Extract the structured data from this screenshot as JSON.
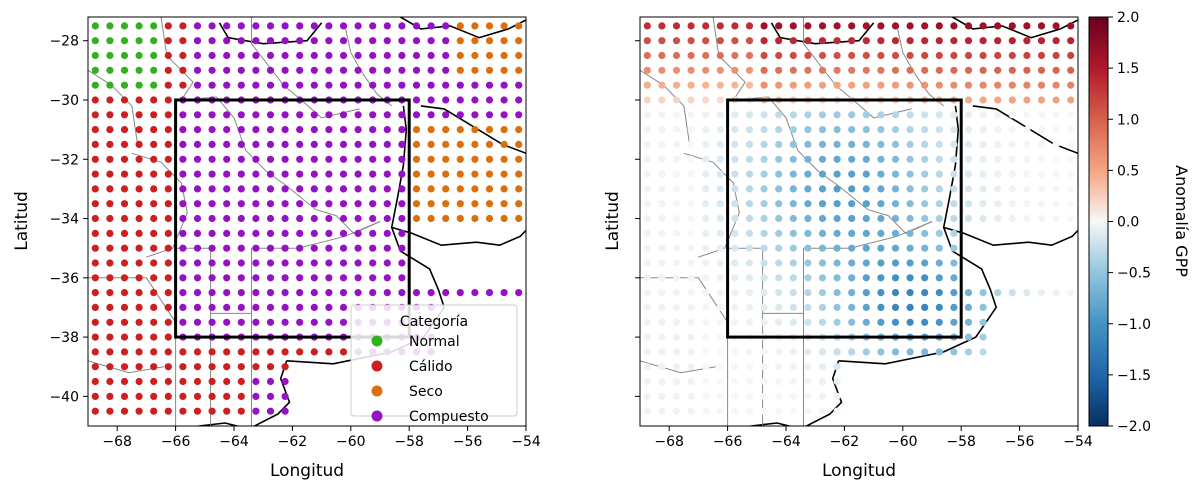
{
  "chart_data": [
    {
      "type": "scatter",
      "xlabel": "Longitud",
      "ylabel": "Latitud",
      "xlim": [
        -69,
        -54
      ],
      "ylim": [
        -41,
        -27.2
      ],
      "xticks": [
        -68,
        -66,
        -64,
        -62,
        -60,
        -58,
        -56,
        -54
      ],
      "yticks": [
        -28,
        -30,
        -32,
        -34,
        -36,
        -38,
        -40
      ],
      "grid_spacing_deg": 0.5,
      "box": {
        "lon": [
          -66,
          -58
        ],
        "lat": [
          -38,
          -30
        ]
      },
      "legend": {
        "title": "Categoría",
        "position": "lower-right",
        "entries": [
          {
            "label": "Normal",
            "color": "#33b020"
          },
          {
            "label": "Cálido",
            "color": "#cc1f1f"
          },
          {
            "label": "Seco",
            "color": "#dd6e0d"
          },
          {
            "label": "Compuesto",
            "color": "#9412c2"
          }
        ]
      },
      "categories_by_region": [
        {
          "category": "Normal",
          "lon": [
            -69,
            -66.5
          ],
          "lat": [
            -29.5,
            -27.2
          ]
        },
        {
          "category": "Cálido",
          "lon": [
            -69,
            -65.5
          ],
          "lat": [
            -41,
            -29.5
          ]
        },
        {
          "category": "Seco",
          "lon": [
            -58.5,
            -54
          ],
          "lat": [
            -36,
            -27.5
          ]
        },
        {
          "category": "Compuesto",
          "lon": [
            -66,
            -58
          ],
          "lat": [
            -38,
            -30
          ]
        }
      ]
    },
    {
      "type": "heatmap",
      "xlabel": "Longitud",
      "ylabel": "Latitud",
      "xlim": [
        -69,
        -54
      ],
      "ylim": [
        -41,
        -27.2
      ],
      "xticks": [
        -68,
        -66,
        -64,
        -62,
        -60,
        -58,
        -56,
        -54
      ],
      "yticks": [
        -28,
        -30,
        -32,
        -34,
        -36,
        -38,
        -40
      ],
      "box": {
        "lon": [
          -66,
          -58
        ],
        "lat": [
          -38,
          -30
        ]
      },
      "colorbar": {
        "label": "Anomalía GPP",
        "range": [
          -2.0,
          2.0
        ],
        "ticks": [
          "2.0",
          "1.5",
          "1.0",
          "0.5",
          "0.0",
          "−0.5",
          "−1.0",
          "−1.5",
          "−2.0"
        ],
        "colormap": "RdBu_r"
      },
      "anomaly_pattern": [
        {
          "region": "north (lat > -30)",
          "anomaly": 1.2
        },
        {
          "region": "box center (-62, -33)",
          "anomaly": -0.9
        },
        {
          "region": "south-east (-59, -37)",
          "anomaly": -1.2
        },
        {
          "region": "west (lon < -67)",
          "anomaly": 0.1
        }
      ]
    }
  ]
}
